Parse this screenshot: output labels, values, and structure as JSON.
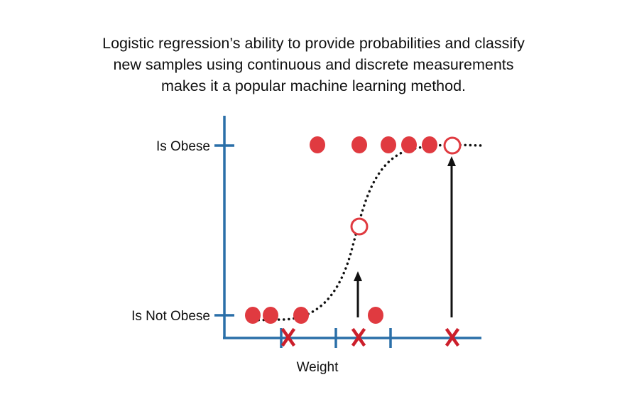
{
  "caption": {
    "line1": "Logistic regression’s ability to provide probabilities and classify",
    "line2": "new samples using continuous and discrete measurements",
    "line3": "makes it a popular machine learning method."
  },
  "diagram": {
    "y_label_top": "Is Obese",
    "y_label_bottom": "Is Not Obese",
    "x_label": "Weight"
  },
  "colors": {
    "axis": "#2a6fa8",
    "point": "#e03a40",
    "marker": "#cc1f2b",
    "curve": "#111111"
  }
}
